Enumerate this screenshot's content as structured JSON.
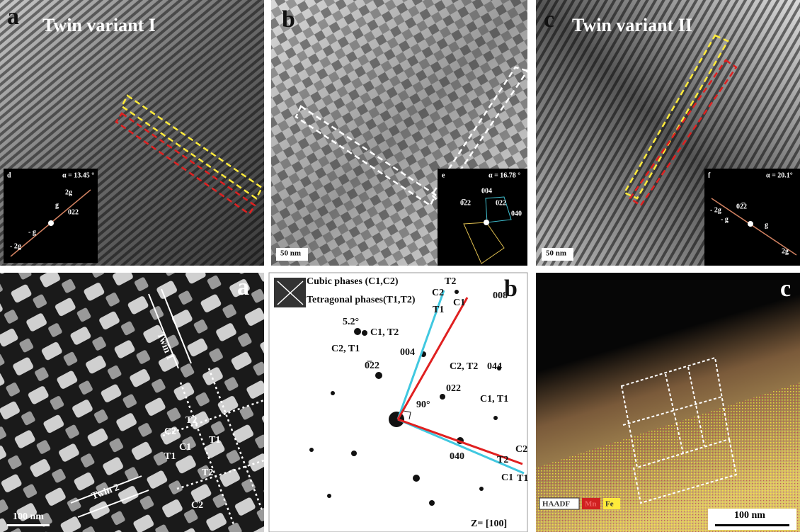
{
  "top_row": [
    {
      "label": "a",
      "title": "Twin variant I",
      "inset": {
        "label": "d",
        "alpha": "α = 13.45 °",
        "spots": [
          "2g",
          "g",
          "022",
          "- g",
          "- 2g"
        ]
      }
    },
    {
      "label": "b",
      "scale_bar": "50 nm",
      "inset": {
        "label": "e",
        "alpha": "α = 16.78 °",
        "spots": [
          "004",
          "0̅22",
          "022",
          "040"
        ]
      }
    },
    {
      "label": "c",
      "title": "Twin variant II",
      "scale_bar": "50 nm",
      "inset": {
        "label": "f",
        "alpha": "α = 20.1°",
        "spots": [
          "- 2g",
          "- g",
          "02̅2",
          "g",
          "2g"
        ]
      }
    }
  ],
  "bottom_row": [
    {
      "label": "a",
      "twins": [
        "Twin 1",
        "Twin 2"
      ],
      "phases": [
        "T2",
        "C2",
        "T1",
        "C1",
        "T1",
        "T2",
        "C2"
      ],
      "scale_bar": "100 nm"
    },
    {
      "label": "b",
      "legend": [
        "Cubic phases (C1,C2)",
        "Tetragonal phases(T1,T2)"
      ],
      "spots": [
        "C2",
        "T2",
        "T1",
        "C1",
        "008",
        "5.2°",
        "C1, T2",
        "C2, T1",
        "004",
        "0̅22",
        "C2, T2",
        "044",
        "022",
        "C1, T1",
        "90°",
        "040",
        "T2",
        "C2",
        "C1",
        "T1"
      ],
      "zone_axis": "Z= [100]"
    },
    {
      "label": "c",
      "legend": [
        "HAADF",
        "Mn",
        "Fe"
      ],
      "scale_bar": "100 nm"
    }
  ]
}
